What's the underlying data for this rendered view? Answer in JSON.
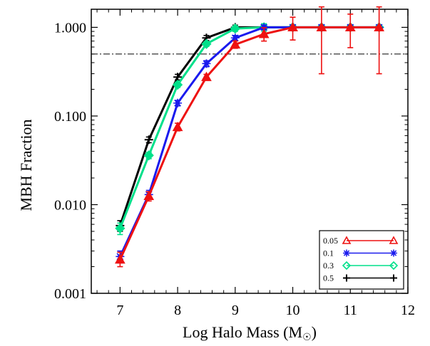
{
  "chart_data": {
    "type": "line",
    "xlabel": "Log Halo Mass (M",
    "xlabel_symbol": "☉",
    "xlabel_suffix": ")",
    "ylabel": "MBH Fraction",
    "xlim": [
      6.5,
      12
    ],
    "ylim": [
      0.001,
      1.6
    ],
    "y_scale": "log",
    "x_ticks": [
      7,
      8,
      9,
      10,
      11,
      12
    ],
    "x_tick_labels": [
      "7",
      "8",
      "9",
      "10",
      "11",
      "12"
    ],
    "y_ticks": [
      0.001,
      0.01,
      0.1,
      1.0
    ],
    "y_tick_labels": [
      "0.001",
      "0.010",
      "0.100",
      "1.000"
    ],
    "reference_line": {
      "y": 0.5,
      "style": "dash-dot"
    },
    "legend_position": "bottom-right",
    "series": [
      {
        "name": "0.5",
        "color": "#000000",
        "marker": "plus",
        "x": [
          7.0,
          7.5,
          8.0,
          8.5,
          9.0,
          9.5,
          10.0
        ],
        "y": [
          0.0058,
          0.054,
          0.275,
          0.76,
          1.0,
          1.0,
          1.0
        ],
        "err_lo": [
          0.005,
          0.05,
          0.255,
          0.71,
          0.94,
          0.94,
          0.94
        ],
        "err_hi": [
          0.0066,
          0.058,
          0.295,
          0.81,
          1.06,
          1.06,
          1.06
        ]
      },
      {
        "name": "0.3",
        "color": "#00e08a",
        "marker": "diamond",
        "x": [
          7.0,
          7.5,
          8.0,
          8.5,
          9.0,
          9.5,
          10.0,
          10.5,
          11.0,
          11.5
        ],
        "y": [
          0.0054,
          0.036,
          0.225,
          0.65,
          0.97,
          1.0,
          1.0,
          1.0,
          1.0,
          1.0
        ],
        "err_lo": [
          0.0046,
          0.033,
          0.21,
          0.61,
          0.9,
          0.9,
          0.93,
          0.93,
          0.93,
          0.93
        ],
        "err_hi": [
          0.0062,
          0.039,
          0.24,
          0.69,
          1.04,
          1.1,
          1.07,
          1.07,
          1.07,
          1.07
        ]
      },
      {
        "name": "0.1",
        "color": "#1a1aee",
        "marker": "asterisk",
        "x": [
          7.0,
          7.5,
          8.0,
          8.5,
          9.0,
          9.5,
          10.0,
          10.5,
          11.0,
          11.5
        ],
        "y": [
          0.0026,
          0.013,
          0.14,
          0.39,
          0.76,
          1.0,
          1.0,
          1.0,
          1.0,
          1.0
        ],
        "err_lo": [
          0.0022,
          0.0115,
          0.13,
          0.36,
          0.71,
          0.94,
          0.94,
          0.94,
          0.94,
          0.94
        ],
        "err_hi": [
          0.003,
          0.0145,
          0.15,
          0.42,
          0.81,
          1.06,
          1.06,
          1.06,
          1.06,
          1.06
        ]
      },
      {
        "name": "0.05",
        "color": "#ee1111",
        "marker": "triangle",
        "x": [
          7.0,
          7.5,
          8.0,
          8.5,
          9.0,
          9.5,
          10.0,
          10.5,
          11.0,
          11.5
        ],
        "y": [
          0.0024,
          0.0125,
          0.075,
          0.275,
          0.64,
          0.84,
          1.0,
          1.0,
          1.0,
          1.0
        ],
        "err_lo": [
          0.002,
          0.011,
          0.068,
          0.255,
          0.58,
          0.7,
          0.72,
          0.3,
          0.59,
          0.3
        ],
        "err_hi": [
          0.0029,
          0.014,
          0.083,
          0.295,
          0.7,
          0.99,
          1.3,
          1.7,
          1.41,
          1.7
        ]
      }
    ],
    "legend_order": [
      "0.05",
      "0.1",
      "0.3",
      "0.5"
    ]
  }
}
